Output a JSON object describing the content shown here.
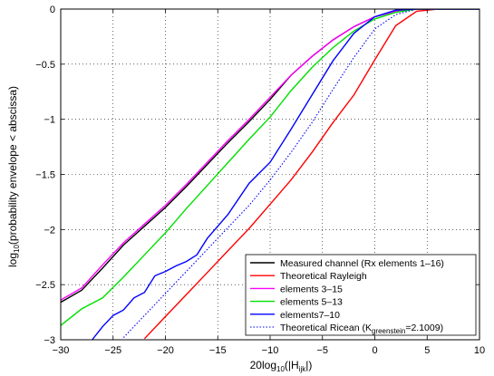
{
  "chart_data": {
    "type": "line",
    "xlabel": {
      "prefix": "20log",
      "sub1": "10",
      "mid": "(|H",
      "sub2": "ijk",
      "suffix": "|)"
    },
    "ylabel": {
      "prefix": "log",
      "sub": "10",
      "suffix": "(probability envelope < abscissa)"
    },
    "xlim": [
      -30,
      10
    ],
    "ylim": [
      -3,
      0
    ],
    "xticks": [
      -30,
      -25,
      -20,
      -15,
      -10,
      -5,
      0,
      5,
      10
    ],
    "xtick_labels": [
      "−30",
      "−25",
      "−20",
      "−15",
      "−10",
      "−5",
      "0",
      "5",
      "10"
    ],
    "yticks": [
      0,
      -0.5,
      -1,
      -1.5,
      -2,
      -2.5,
      -3
    ],
    "ytick_labels": [
      "0",
      "−0.5",
      "−1",
      "−1.5",
      "−2",
      "−2.5",
      "−3"
    ],
    "grid": true,
    "legend_position": "bottom-right",
    "series": [
      {
        "name": "Measured channel (Rx elements 1–16)",
        "color": "#000000",
        "dash": "solid",
        "x": [
          -30,
          -28,
          -26,
          -24,
          -22,
          -20,
          -18,
          -16,
          -14,
          -12,
          -10,
          -8,
          -6,
          -4,
          -2,
          0,
          2,
          4,
          6,
          8,
          10
        ],
        "y": [
          -2.66,
          -2.55,
          -2.35,
          -2.14,
          -1.97,
          -1.8,
          -1.61,
          -1.41,
          -1.21,
          -1.02,
          -0.82,
          -0.6,
          -0.43,
          -0.28,
          -0.16,
          -0.07,
          -0.02,
          0,
          0,
          0,
          0
        ]
      },
      {
        "name": "Theoretical Rayleigh",
        "color": "#ff0000",
        "dash": "solid",
        "x": [
          -22,
          -20,
          -18,
          -16,
          -14,
          -12,
          -10,
          -8,
          -6,
          -4,
          -2,
          0,
          2,
          4,
          6,
          8,
          10
        ],
        "y": [
          -2.99,
          -2.79,
          -2.59,
          -2.39,
          -2.19,
          -1.99,
          -1.77,
          -1.55,
          -1.3,
          -1.03,
          -0.78,
          -0.46,
          -0.15,
          -0.02,
          0,
          0,
          0
        ]
      },
      {
        "name": "elements 3–15",
        "color": "#ff00ff",
        "dash": "solid",
        "x": [
          -30,
          -28,
          -26,
          -24,
          -22,
          -20,
          -18,
          -16,
          -14,
          -12,
          -10,
          -8,
          -6,
          -4,
          -2,
          0,
          2,
          4,
          6,
          8,
          10
        ],
        "y": [
          -2.64,
          -2.53,
          -2.32,
          -2.12,
          -1.95,
          -1.78,
          -1.59,
          -1.39,
          -1.19,
          -1.0,
          -0.8,
          -0.6,
          -0.43,
          -0.28,
          -0.16,
          -0.07,
          -0.02,
          0,
          0,
          0,
          0
        ]
      },
      {
        "name": "elements 5–13",
        "color": "#00e000",
        "dash": "solid",
        "x": [
          -30,
          -28,
          -26,
          -24,
          -22,
          -20,
          -18,
          -16,
          -14,
          -12,
          -10,
          -8,
          -6,
          -4,
          -2,
          0,
          2,
          4,
          6,
          8,
          10
        ],
        "y": [
          -2.87,
          -2.72,
          -2.62,
          -2.43,
          -2.23,
          -2.03,
          -1.81,
          -1.6,
          -1.39,
          -1.18,
          -0.98,
          -0.74,
          -0.53,
          -0.35,
          -0.2,
          -0.09,
          -0.03,
          0,
          0,
          0,
          0
        ]
      },
      {
        "name": "elements7–10",
        "color": "#0000ff",
        "dash": "solid",
        "x": [
          -27,
          -26,
          -25,
          -24,
          -23,
          -22,
          -21,
          -20,
          -19,
          -18,
          -17,
          -16,
          -14,
          -12,
          -10,
          -8,
          -6,
          -4,
          -2,
          0,
          2,
          4,
          6,
          8,
          10
        ],
        "y": [
          -3.0,
          -2.88,
          -2.78,
          -2.73,
          -2.62,
          -2.57,
          -2.42,
          -2.38,
          -2.33,
          -2.29,
          -2.23,
          -2.08,
          -1.86,
          -1.58,
          -1.39,
          -1.09,
          -0.78,
          -0.47,
          -0.22,
          -0.07,
          -0.01,
          0,
          0,
          0,
          0
        ]
      },
      {
        "name": "Theoretical Ricean (K",
        "name_sub": "greenstein",
        "name_suffix": "=2.1009)",
        "color": "#0000ff",
        "dash": "dotted",
        "x": [
          -24,
          -22,
          -20,
          -18,
          -16,
          -14,
          -12,
          -10,
          -8,
          -6,
          -4,
          -2,
          0,
          2,
          4,
          6,
          8,
          10
        ],
        "y": [
          -2.98,
          -2.78,
          -2.58,
          -2.38,
          -2.18,
          -1.98,
          -1.78,
          -1.55,
          -1.3,
          -1.03,
          -0.73,
          -0.44,
          -0.18,
          -0.05,
          0,
          0,
          0,
          0
        ]
      }
    ]
  }
}
